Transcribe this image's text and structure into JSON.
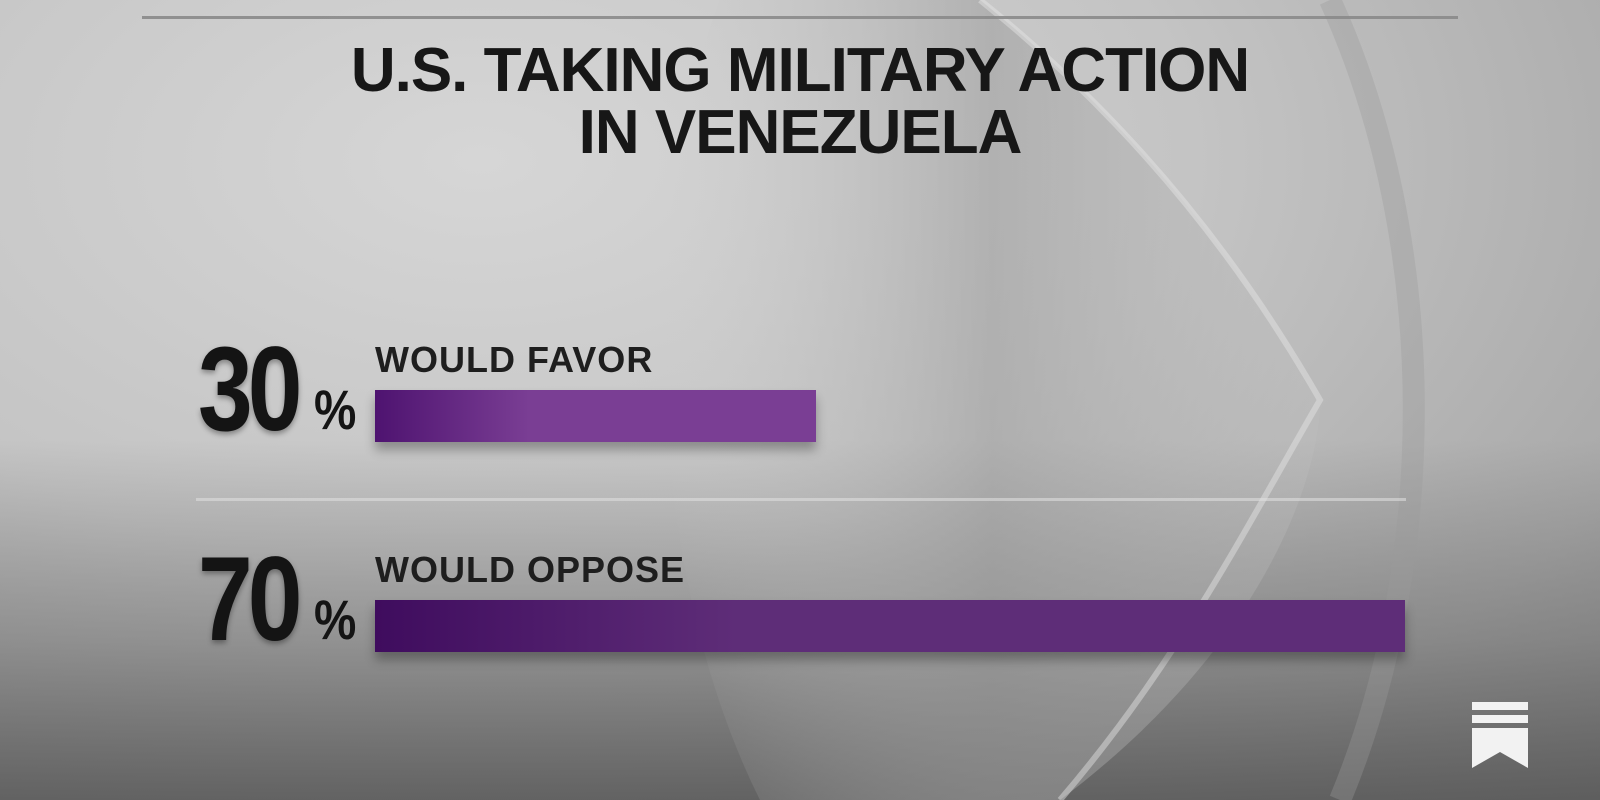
{
  "chart_data": {
    "type": "bar",
    "orientation": "horizontal",
    "title": "U.S. TAKING MILITARY ACTION IN VENEZUELA",
    "title_lines": [
      "U.S. TAKING MILITARY ACTION",
      "IN VENEZUELA"
    ],
    "categories": [
      "WOULD FAVOR",
      "WOULD OPPOSE"
    ],
    "values": [
      30,
      70
    ],
    "unit": "%",
    "xlim": [
      0,
      70
    ],
    "legend": "none",
    "grid": false,
    "colors": {
      "favor_start": "#4e1370",
      "favor_end": "#7a3e94",
      "oppose_start": "#3f0c5e",
      "oppose_end": "#5e2d78"
    }
  },
  "icons": {
    "logo": "bookmark-stack-icon"
  }
}
